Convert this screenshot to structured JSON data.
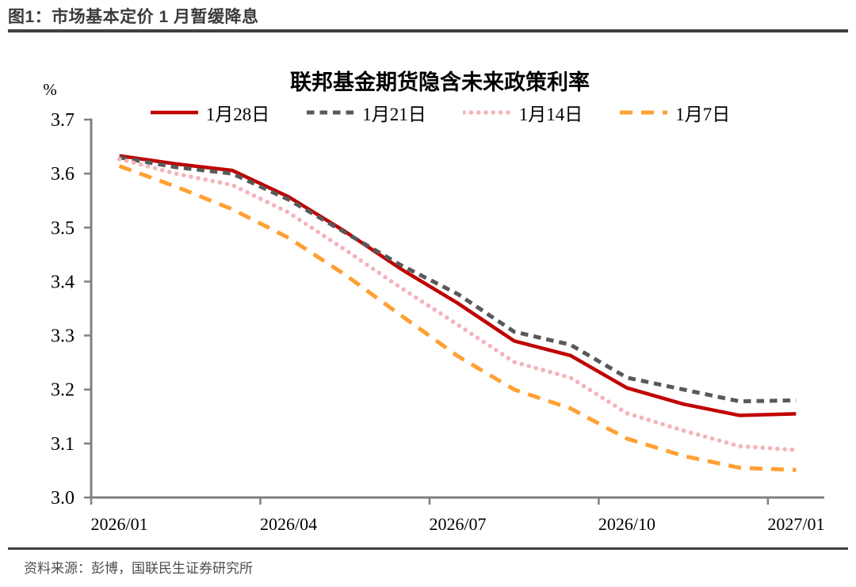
{
  "header": {
    "title": "图1：市场基本定价 1 月暂缓降息"
  },
  "chart": {
    "title": "联邦基金期货隐含未来政策利率"
  },
  "footer": {
    "source": "资料来源：彭博，国联民生证券研究所"
  },
  "chart_data": {
    "type": "line",
    "title": "联邦基金期货隐含未来政策利率",
    "y_unit_label": "%",
    "ylim": [
      3.0,
      3.7
    ],
    "y_ticks": [
      "3.0",
      "3.1",
      "3.2",
      "3.3",
      "3.4",
      "3.5",
      "3.6",
      "3.7"
    ],
    "x": [
      "2026/01",
      "2026/02",
      "2026/03",
      "2026/04",
      "2026/05",
      "2026/06",
      "2026/07",
      "2026/08",
      "2026/09",
      "2026/10",
      "2026/11",
      "2026/12",
      "2027/01"
    ],
    "x_tick_labels": [
      "2026/01",
      "2026/04",
      "2026/07",
      "2026/10",
      "2027/01"
    ],
    "x_tick_every": 3,
    "grid": false,
    "legend_position": "top",
    "axis_color": "#808080",
    "series": [
      {
        "name": "1月28日",
        "color": "#C00000",
        "style": "solid",
        "values": [
          3.633,
          3.618,
          3.606,
          3.557,
          3.493,
          3.423,
          3.36,
          3.29,
          3.263,
          3.203,
          3.173,
          3.152,
          3.155
        ]
      },
      {
        "name": "1月21日",
        "color": "#595959",
        "style": "dashed",
        "values": [
          3.63,
          3.612,
          3.6,
          3.552,
          3.491,
          3.43,
          3.377,
          3.307,
          3.283,
          3.222,
          3.2,
          3.178,
          3.18
        ]
      },
      {
        "name": "1月14日",
        "color": "#F5B3BA",
        "style": "dotted",
        "values": [
          3.627,
          3.6,
          3.579,
          3.528,
          3.459,
          3.388,
          3.32,
          3.251,
          3.222,
          3.156,
          3.124,
          3.095,
          3.088
        ]
      },
      {
        "name": "1月7日",
        "color": "#FFA033",
        "style": "long-dash",
        "values": [
          3.614,
          3.576,
          3.534,
          3.481,
          3.413,
          3.337,
          3.262,
          3.2,
          3.165,
          3.109,
          3.077,
          3.055,
          3.051
        ]
      }
    ]
  }
}
